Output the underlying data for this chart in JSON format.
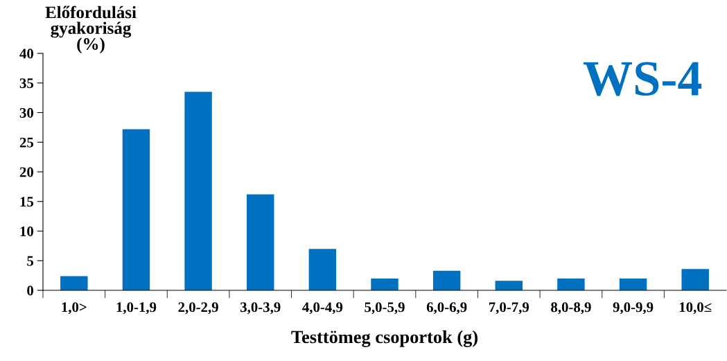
{
  "chart_data": {
    "type": "bar",
    "title": "WS-4",
    "ylabel": "Előfordulási\ngyakoriság\n(%)",
    "xlabel": "Testtömeg csoportok (g)",
    "categories": [
      "1,0>",
      "1,0-1,9",
      "2,0-2,9",
      "3,0-3,9",
      "4,0-4,9",
      "5,0-5,9",
      "6,0-6,9",
      "7,0-7,9",
      "8,0-8,9",
      "9,0-9,9",
      "10,0≤"
    ],
    "values": [
      2.4,
      27.2,
      33.5,
      16.2,
      7.0,
      2.0,
      3.3,
      1.6,
      2.0,
      2.0,
      3.6
    ],
    "color": "#0070c0",
    "ylim": [
      0,
      40
    ],
    "yticks": [
      0,
      5,
      10,
      15,
      20,
      25,
      30,
      35,
      40
    ],
    "grid": false,
    "legend": false
  }
}
